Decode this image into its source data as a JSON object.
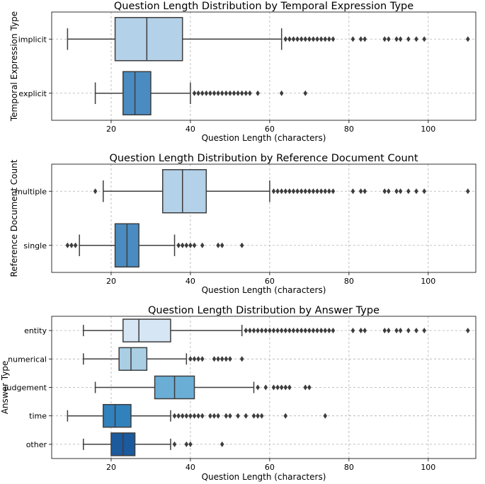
{
  "chart_data": [
    {
      "type": "box",
      "title": "Question Length Distribution by Temporal Expression Type",
      "xlabel": "Question Length (characters)",
      "ylabel": "Temporal Expression Type",
      "xlim": [
        5,
        112
      ],
      "xticks": [
        "20",
        "40",
        "60",
        "80",
        "100"
      ],
      "categories": [
        {
          "name": "implicit",
          "color": "#b3d1e8",
          "whisker_low": 9,
          "q1": 21,
          "median": 29,
          "q3": 38,
          "whisker_high": 63,
          "outliers": [
            64,
            65,
            66,
            67,
            68,
            69,
            70,
            71,
            72,
            73,
            74,
            75,
            76,
            81,
            83,
            84,
            89,
            90,
            92,
            93,
            95,
            97,
            99,
            110
          ]
        },
        {
          "name": "explicit",
          "color": "#4a8cc1",
          "whisker_low": 16,
          "q1": 23,
          "median": 26,
          "q3": 30,
          "whisker_high": 40,
          "outliers": [
            41,
            42,
            43,
            44,
            45,
            46,
            47,
            48,
            49,
            50,
            51,
            52,
            53,
            54,
            55,
            57,
            63,
            69
          ]
        }
      ]
    },
    {
      "type": "box",
      "title": "Question Length Distribution by Reference Document Count",
      "xlabel": "Question Length (characters)",
      "ylabel": "Reference Document Count",
      "xlim": [
        5,
        112
      ],
      "xticks": [
        "20",
        "40",
        "60",
        "80",
        "100"
      ],
      "categories": [
        {
          "name": "multiple",
          "color": "#b3d1e8",
          "whisker_low": 18,
          "q1": 33,
          "median": 38,
          "q3": 44,
          "whisker_high": 60,
          "outliers": [
            16,
            61,
            62,
            63,
            64,
            65,
            66,
            67,
            68,
            69,
            70,
            71,
            72,
            73,
            74,
            75,
            76,
            81,
            83,
            84,
            89,
            90,
            92,
            93,
            95,
            97,
            99,
            110
          ]
        },
        {
          "name": "single",
          "color": "#4a8cc1",
          "whisker_low": 12,
          "q1": 21,
          "median": 24,
          "q3": 27,
          "whisker_high": 36,
          "outliers": [
            9,
            10,
            11,
            37,
            38,
            39,
            40,
            41,
            43,
            47,
            48,
            53
          ]
        }
      ]
    },
    {
      "type": "box",
      "title": "Question Length Distribution by Answer Type",
      "xlabel": "Question Length (characters)",
      "ylabel": "Answer Type",
      "xlim": [
        5,
        112
      ],
      "xticks": [
        "20",
        "40",
        "60",
        "80",
        "100"
      ],
      "categories": [
        {
          "name": "entity",
          "color": "#d6e6f4",
          "whisker_low": 13,
          "q1": 23,
          "median": 27,
          "q3": 35,
          "whisker_high": 53,
          "outliers": [
            54,
            55,
            56,
            57,
            58,
            59,
            60,
            61,
            62,
            63,
            64,
            65,
            66,
            67,
            68,
            69,
            70,
            71,
            72,
            73,
            74,
            75,
            76,
            81,
            83,
            84,
            89,
            90,
            92,
            93,
            95,
            97,
            99,
            110
          ]
        },
        {
          "name": "numerical",
          "color": "#aacfe5",
          "whisker_low": 13,
          "q1": 22,
          "median": 25,
          "q3": 29,
          "whisker_high": 39,
          "outliers": [
            40,
            41,
            42,
            43,
            46,
            47,
            48,
            49,
            50,
            53
          ]
        },
        {
          "name": "judgement",
          "color": "#6aaed6",
          "whisker_low": 16,
          "q1": 31,
          "median": 36,
          "q3": 41,
          "whisker_high": 56,
          "outliers": [
            57,
            59,
            61,
            62,
            63,
            64,
            65,
            69,
            70
          ]
        },
        {
          "name": "time",
          "color": "#3181bd",
          "whisker_low": 9,
          "q1": 18,
          "median": 21,
          "q3": 25,
          "whisker_high": 35,
          "outliers": [
            36,
            37,
            38,
            39,
            40,
            41,
            42,
            43,
            45,
            46,
            47,
            49,
            50,
            52,
            54,
            56,
            57,
            58,
            64,
            74
          ]
        },
        {
          "name": "other",
          "color": "#1c5a9e",
          "whisker_low": 13,
          "q1": 20,
          "median": 23,
          "q3": 26,
          "whisker_high": 35,
          "outliers": [
            36,
            39,
            40,
            48
          ]
        }
      ]
    }
  ]
}
